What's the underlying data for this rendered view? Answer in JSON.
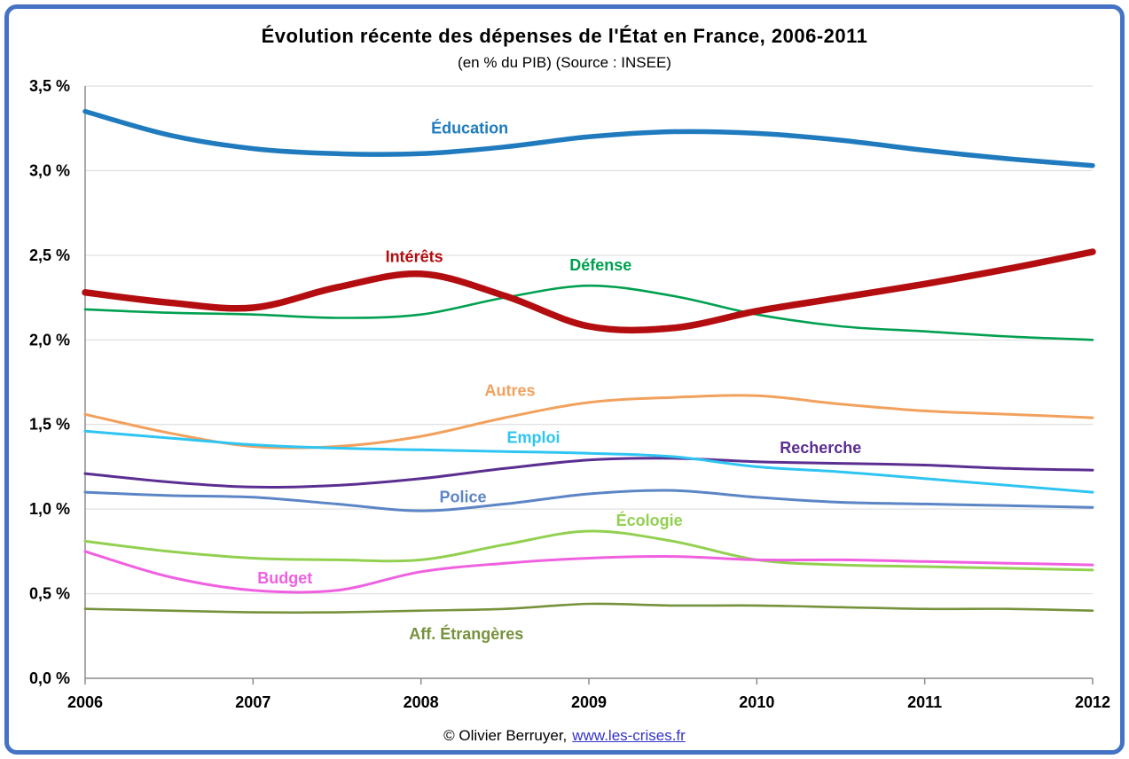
{
  "title": "Évolution récente des dépenses de l'État en France, 2006-2011",
  "subtitle": "(en % du PIB) (Source : INSEE)",
  "footer": {
    "copyright": "© Olivier Berruyer,",
    "link": "www.les-crises.fr",
    "link_color": "#3333CC"
  },
  "frame": {
    "border_color": "#4472C4",
    "background": "#FFFFFF"
  },
  "axis_style": {
    "grid_color": "#D9D9D9",
    "axis_color": "#8C8C8C",
    "tick_label_color": "#000000"
  },
  "chart_data": {
    "type": "line",
    "title": "Évolution récente des dépenses de l'État en France, 2006-2011",
    "subtitle": "(en % du PIB) (Source : INSEE)",
    "xlabel": "",
    "ylabel": "",
    "grid": true,
    "legend_position": "inline-labels",
    "xlim": [
      2006,
      2012
    ],
    "ylim": [
      0,
      3.5
    ],
    "x_tick_values": [
      2006,
      2007,
      2008,
      2009,
      2010,
      2011,
      2012
    ],
    "x_tick_labels": [
      "2006",
      "2007",
      "2008",
      "2009",
      "2010",
      "2011",
      "2012"
    ],
    "y_tick_values": [
      0,
      0.5,
      1.0,
      1.5,
      2.0,
      2.5,
      3.0,
      3.5
    ],
    "y_tick_labels": [
      "0,0 %",
      "0,5 %",
      "1,0 %",
      "1,5 %",
      "2,0 %",
      "2,5 %",
      "3,0 %",
      "3,5 %"
    ],
    "x": [
      2006,
      2006.5,
      2007,
      2007.5,
      2008,
      2008.5,
      2009,
      2009.5,
      2010,
      2010.5,
      2011,
      2011.5,
      2012
    ],
    "series": [
      {
        "name": "Éducation",
        "color": "#1F7BBE",
        "width": 5.5,
        "values": [
          3.35,
          3.21,
          3.13,
          3.1,
          3.1,
          3.14,
          3.2,
          3.23,
          3.22,
          3.18,
          3.12,
          3.07,
          3.03
        ],
        "label": {
          "x": 2008.29,
          "y": 3.22
        }
      },
      {
        "name": "Défense",
        "color": "#00A050",
        "width": 2.6,
        "values": [
          2.18,
          2.16,
          2.15,
          2.13,
          2.15,
          2.25,
          2.32,
          2.26,
          2.15,
          2.08,
          2.05,
          2.02,
          2.0
        ],
        "label": {
          "x": 2009.07,
          "y": 2.41
        }
      },
      {
        "name": "Intérêts",
        "color": "#B30D10",
        "width": 7.5,
        "values": [
          2.28,
          2.22,
          2.19,
          2.31,
          2.39,
          2.26,
          2.08,
          2.07,
          2.17,
          2.25,
          2.33,
          2.42,
          2.52
        ],
        "label": {
          "x": 2007.96,
          "y": 2.46
        }
      },
      {
        "name": "Autres",
        "color": "#F2A15D",
        "width": 3,
        "values": [
          1.56,
          1.45,
          1.37,
          1.37,
          1.43,
          1.54,
          1.63,
          1.66,
          1.67,
          1.62,
          1.58,
          1.56,
          1.54
        ],
        "label": {
          "x": 2008.53,
          "y": 1.67
        }
      },
      {
        "name": "Recherche",
        "color": "#5B2E91",
        "width": 3,
        "values": [
          1.21,
          1.16,
          1.13,
          1.14,
          1.18,
          1.24,
          1.29,
          1.3,
          1.28,
          1.27,
          1.26,
          1.24,
          1.23
        ],
        "label": {
          "x": 2010.38,
          "y": 1.33
        }
      },
      {
        "name": "Emploi",
        "color": "#2FC5F2",
        "width": 3,
        "values": [
          1.46,
          1.42,
          1.38,
          1.36,
          1.35,
          1.34,
          1.33,
          1.31,
          1.25,
          1.22,
          1.18,
          1.14,
          1.1
        ],
        "label": {
          "x": 2008.67,
          "y": 1.39
        }
      },
      {
        "name": "Police",
        "color": "#5C85C6",
        "width": 3,
        "values": [
          1.1,
          1.08,
          1.07,
          1.03,
          0.99,
          1.03,
          1.09,
          1.11,
          1.07,
          1.04,
          1.03,
          1.02,
          1.01
        ],
        "label": {
          "x": 2008.25,
          "y": 1.04
        }
      },
      {
        "name": "Écologie",
        "color": "#92D050",
        "width": 3,
        "values": [
          0.81,
          0.75,
          0.71,
          0.7,
          0.7,
          0.79,
          0.87,
          0.81,
          0.7,
          0.67,
          0.66,
          0.65,
          0.64
        ],
        "label": {
          "x": 2009.36,
          "y": 0.9
        }
      },
      {
        "name": "Budget",
        "color": "#F060E0",
        "width": 3,
        "values": [
          0.75,
          0.6,
          0.52,
          0.52,
          0.63,
          0.68,
          0.71,
          0.72,
          0.7,
          0.7,
          0.69,
          0.68,
          0.67
        ],
        "label": {
          "x": 2007.19,
          "y": 0.56
        }
      },
      {
        "name": "Aff. Étrangères",
        "color": "#76923C",
        "width": 2.6,
        "values": [
          0.41,
          0.4,
          0.39,
          0.39,
          0.4,
          0.41,
          0.44,
          0.43,
          0.43,
          0.42,
          0.41,
          0.41,
          0.4
        ],
        "label": {
          "x": 2008.27,
          "y": 0.23
        }
      }
    ]
  }
}
